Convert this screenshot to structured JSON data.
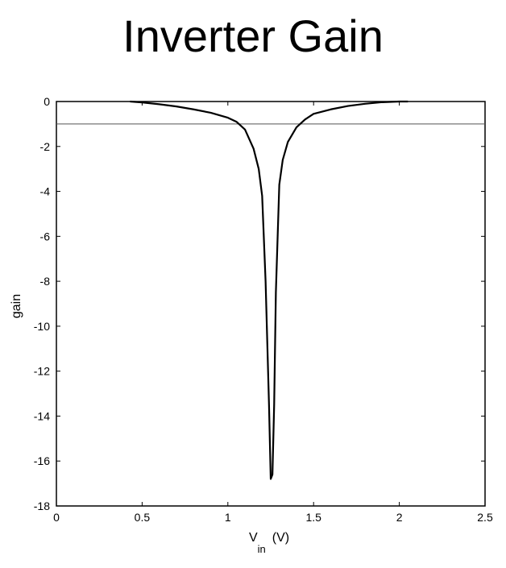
{
  "slide": {
    "title": "Inverter Gain"
  },
  "chart_data": {
    "type": "line",
    "title": "",
    "xlabel_main": "V",
    "xlabel_sub": "in",
    "xlabel_unit": "(V)",
    "ylabel": "gain",
    "xlim": [
      0,
      2.5
    ],
    "ylim": [
      -18,
      0
    ],
    "xticks": [
      0,
      0.5,
      1,
      1.5,
      2,
      2.5
    ],
    "xtick_labels": [
      "0",
      "0.5",
      "1",
      "1.5",
      "2",
      "2.5"
    ],
    "yticks": [
      0,
      -2,
      -4,
      -6,
      -8,
      -10,
      -12,
      -14,
      -16,
      -18
    ],
    "ytick_labels": [
      "0",
      "-2",
      "-4",
      "-6",
      "-8",
      "-10",
      "-12",
      "-14",
      "-16",
      "-18"
    ],
    "grid": false,
    "reference_line": {
      "y": -1
    },
    "colors": {
      "line": "#000000",
      "axes": "#000000",
      "reference": "#555555"
    },
    "series": [
      {
        "x": [
          0.43,
          0.5,
          0.6,
          0.7,
          0.8,
          0.9,
          1.0,
          1.05,
          1.1,
          1.15,
          1.18,
          1.2,
          1.22,
          1.24,
          1.25,
          1.26,
          1.27,
          1.28,
          1.3,
          1.32,
          1.35,
          1.4,
          1.45,
          1.5,
          1.6,
          1.7,
          1.8,
          1.9,
          2.0,
          2.05
        ],
        "y": [
          0.0,
          -0.04,
          -0.12,
          -0.22,
          -0.35,
          -0.5,
          -0.72,
          -0.9,
          -1.25,
          -2.1,
          -3.0,
          -4.2,
          -8.0,
          -13.5,
          -16.8,
          -16.6,
          -13.5,
          -8.5,
          -3.7,
          -2.6,
          -1.8,
          -1.15,
          -0.8,
          -0.55,
          -0.35,
          -0.2,
          -0.1,
          -0.03,
          0.0,
          0.0
        ]
      }
    ]
  }
}
